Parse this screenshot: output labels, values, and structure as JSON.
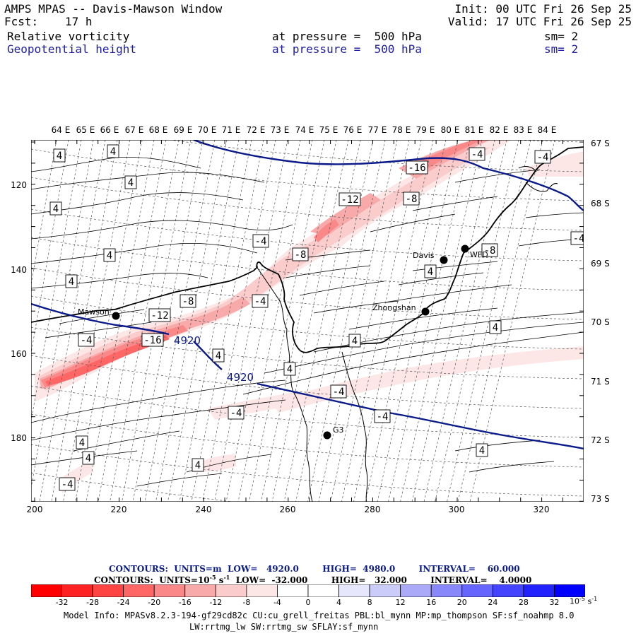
{
  "header": {
    "title": "AMPS MPAS -- Davis-Mawson Window",
    "init": "Init: 00 UTC Fri 26 Sep 25",
    "fcst_label": "Fcst:",
    "fcst_value": "17 h",
    "valid": "Valid: 17 UTC Fri 26 Sep 25",
    "field1": {
      "name": "Relative vorticity",
      "level": "at pressure =  500 hPa",
      "smooth": "sm= 2",
      "color": "#000000"
    },
    "field2": {
      "name": "Geopotential height",
      "level": "at pressure =  500 hPa",
      "smooth": "sm= 2",
      "color": "#1a1aa6"
    }
  },
  "axes": {
    "top_lon_labels": [
      "64 E",
      "65 E",
      "66 E",
      "67 E",
      "68 E",
      "69 E",
      "70 E",
      "71 E",
      "72 E",
      "73 E",
      "74 E",
      "75 E",
      "76 E",
      "77 E",
      "78 E",
      "79 E",
      "80 E",
      "81 E",
      "82 E",
      "83 E",
      "84 E"
    ],
    "right_lat_labels": [
      "67 S",
      "68 S",
      "69 S",
      "70 S",
      "71 S",
      "72 S",
      "73 S"
    ],
    "bottom_x_ticks": [
      "200",
      "220",
      "240",
      "260",
      "280",
      "300",
      "320"
    ],
    "left_y_ticks": [
      "120",
      "140",
      "160",
      "180"
    ]
  },
  "stations": [
    {
      "name": "Mawson",
      "marker": "filled-circle"
    },
    {
      "name": "Davis",
      "marker": "filled-circle"
    },
    {
      "name": "WFD",
      "marker": "filled-circle"
    },
    {
      "name": "Zhongshan",
      "marker": "filled-circle"
    },
    {
      "name": "G3",
      "marker": "filled-circle"
    }
  ],
  "height_contour_labels": [
    "4920",
    "4920"
  ],
  "vorticity_contour_labels": [
    "4",
    "4",
    "4",
    "4",
    "4",
    "4",
    "4",
    "4",
    "4",
    "4",
    "4",
    "4",
    "4",
    "4",
    "4",
    "-4",
    "-4",
    "-4",
    "-4",
    "-4",
    "-4",
    "-4",
    "-4",
    "-4",
    "-4",
    "-8",
    "-8",
    "-8",
    "-8",
    "-12",
    "-12",
    "-16",
    "-16"
  ],
  "contour_info": {
    "line1": "CONTOURS:  UNITS=m  LOW=   4920.0        HIGH=  4980.0        INTERVAL=    60.000",
    "line2_pre": "CONTOURS:  UNITS=10",
    "line2_exp": "-5",
    "line2_mid": " s",
    "line2_exp2": "-1",
    "line2_post": "  LOW=  -32.000        HIGH=   32.000        INTERVAL=    4.0000"
  },
  "colorbar": {
    "colors": [
      "#ff0000",
      "#ff2222",
      "#ff4444",
      "#ff6666",
      "#fb8888",
      "#f8aaaa",
      "#fbcccc",
      "#fde6e6",
      "#ffffff",
      "#ffffff",
      "#e6e6fd",
      "#ccccfb",
      "#aaaaf8",
      "#8888fb",
      "#6666ff",
      "#4444ff",
      "#2222ff",
      "#0000ff"
    ],
    "labels": [
      "-32",
      "-28",
      "-24",
      "-20",
      "-16",
      "-12",
      "-8",
      "-4",
      "0",
      "4",
      "8",
      "12",
      "16",
      "20",
      "24",
      "28",
      "32"
    ],
    "unit_base": "10",
    "unit_exp": "-5",
    "unit_s": " s",
    "unit_exp2": "-1"
  },
  "model_info": {
    "line1": "Model Info: MPASv8.2.3-194-gf29cd82c CU:cu_grell_freitas PBL:bl_mynn MP:mp_thompson SF:sf_noahmp 8.0",
    "line2": "LW:rrtmg_lw SW:rrtmg_sw SFLAY:sf_mynn"
  }
}
